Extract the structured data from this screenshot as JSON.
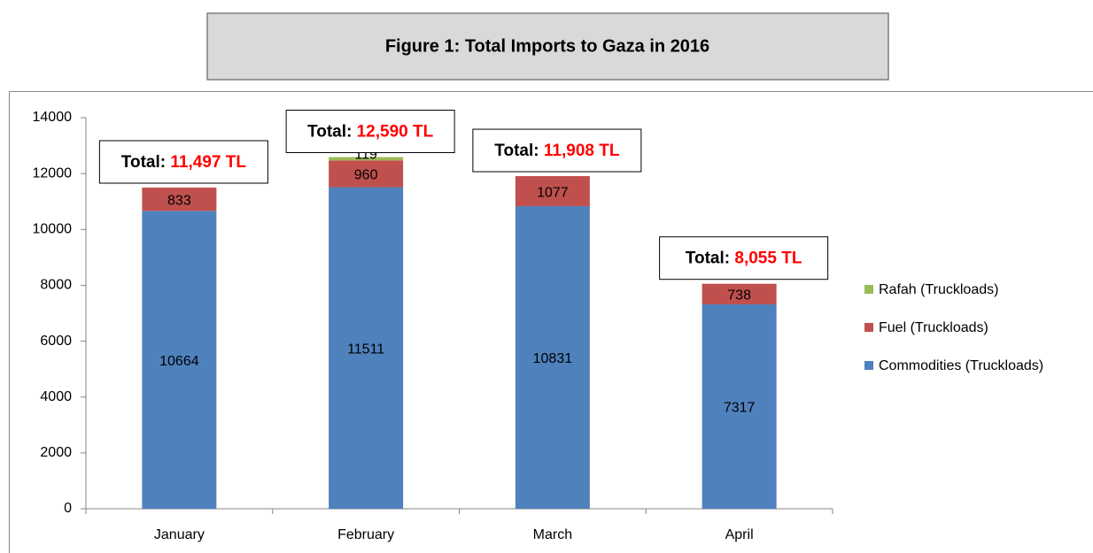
{
  "chart_data": {
    "type": "bar",
    "stacked": true,
    "title": "Figure 1: Total Imports to Gaza in 2016",
    "categories": [
      "January",
      "February",
      "March",
      "April"
    ],
    "series": [
      {
        "name": "Commodities (Truckloads)",
        "color": "#4f81bd",
        "values": [
          10664,
          11511,
          10831,
          7317
        ]
      },
      {
        "name": "Fuel (Truckloads)",
        "color": "#c0504d",
        "values": [
          833,
          960,
          1077,
          738
        ]
      },
      {
        "name": "Rafah (Truckloads)",
        "color": "#9bbb59",
        "values": [
          null,
          119,
          null,
          null
        ]
      }
    ],
    "annotations": [
      {
        "prefix": "Total:",
        "text": "11,497 TL"
      },
      {
        "prefix": "Total:",
        "text": "12,590 TL"
      },
      {
        "prefix": "Total:",
        "text": "11,908 TL"
      },
      {
        "prefix": "Total:",
        "text": "8,055 TL"
      }
    ],
    "ylim": [
      0,
      14000
    ],
    "yticks": [
      0,
      2000,
      4000,
      6000,
      8000,
      10000,
      12000,
      14000
    ],
    "legend": "right"
  }
}
